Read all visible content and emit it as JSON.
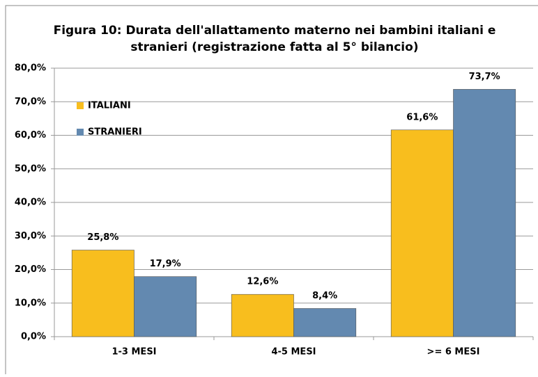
{
  "chart_data": {
    "type": "bar",
    "title": [
      "Figura 10: Durata dell'allattamento materno nei bambini italiani e",
      "stranieri (registrazione fatta al 5° bilancio)"
    ],
    "categories": [
      "1-3 MESI",
      "4-5 MESI",
      ">= 6 MESI"
    ],
    "series": [
      {
        "name": "ITALIANI",
        "color": "#f8be1e",
        "values": [
          25.8,
          12.6,
          61.6
        ],
        "value_labels": [
          "25,8%",
          "12,6%",
          "61,6%"
        ]
      },
      {
        "name": "STRANIERI",
        "color": "#6389b0",
        "values": [
          17.9,
          8.4,
          73.7
        ],
        "value_labels": [
          "17,9%",
          "8,4%",
          "73,7%"
        ]
      }
    ],
    "ylim": [
      0,
      80
    ],
    "yticks": [
      {
        "value": 0,
        "label": "0,0%"
      },
      {
        "value": 10,
        "label": "10,0%"
      },
      {
        "value": 20,
        "label": "20,0%"
      },
      {
        "value": 30,
        "label": "30,0%"
      },
      {
        "value": 40,
        "label": "40,0%"
      },
      {
        "value": 50,
        "label": "50,0%"
      },
      {
        "value": 60,
        "label": "60,0%"
      },
      {
        "value": 70,
        "label": "70,0%"
      },
      {
        "value": 80,
        "label": "80,0%"
      }
    ],
    "grid": true,
    "legend": "upper left"
  }
}
